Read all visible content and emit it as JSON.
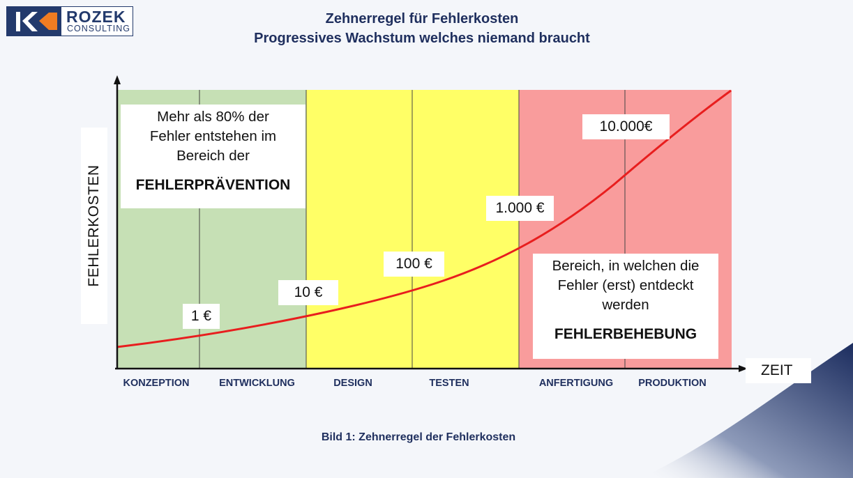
{
  "logo": {
    "text": "ROZEK",
    "subtext": "CONSULTING"
  },
  "title": {
    "line1": "Zehnerregel  für Fehlerkosten",
    "line2": "Progressives Wachstum welches niemand braucht"
  },
  "y_axis_label": "FEHLERKOSTEN",
  "x_axis_label": "ZEIT",
  "phases": [
    "KONZEPTION",
    "ENTWICKLUNG",
    "DESIGN",
    "TESTEN",
    "ANFERTIGUNG",
    "PRODUKTION"
  ],
  "zones": [
    {
      "phases": [
        "KONZEPTION",
        "ENTWICKLUNG"
      ],
      "color": "#c6e0b5"
    },
    {
      "phases": [
        "DESIGN",
        "TESTEN"
      ],
      "color": "#ffff66"
    },
    {
      "phases": [
        "ANFERTIGUNG",
        "PRODUKTION"
      ],
      "color": "#f99c9c"
    }
  ],
  "curve_color": "#e81e1e",
  "cost_labels": [
    "1 €",
    "10 €",
    "100 €",
    "1.000 €",
    "10.000€"
  ],
  "prevention_box": {
    "line1": "Mehr als 80% der",
    "line2": "Fehler entstehen im",
    "line3": "Bereich der",
    "strong": "FEHLERPRÄVENTION"
  },
  "correction_box": {
    "line1": "Bereich, in welchen die",
    "line2": "Fehler (erst) entdeckt",
    "line3": "werden",
    "strong": "FEHLERBEHEBUNG"
  },
  "caption": "Bild 1: Zehnerregel der Fehlerkosten",
  "colors": {
    "navy": "#233a6c",
    "logo_orange": "#f07c22"
  }
}
